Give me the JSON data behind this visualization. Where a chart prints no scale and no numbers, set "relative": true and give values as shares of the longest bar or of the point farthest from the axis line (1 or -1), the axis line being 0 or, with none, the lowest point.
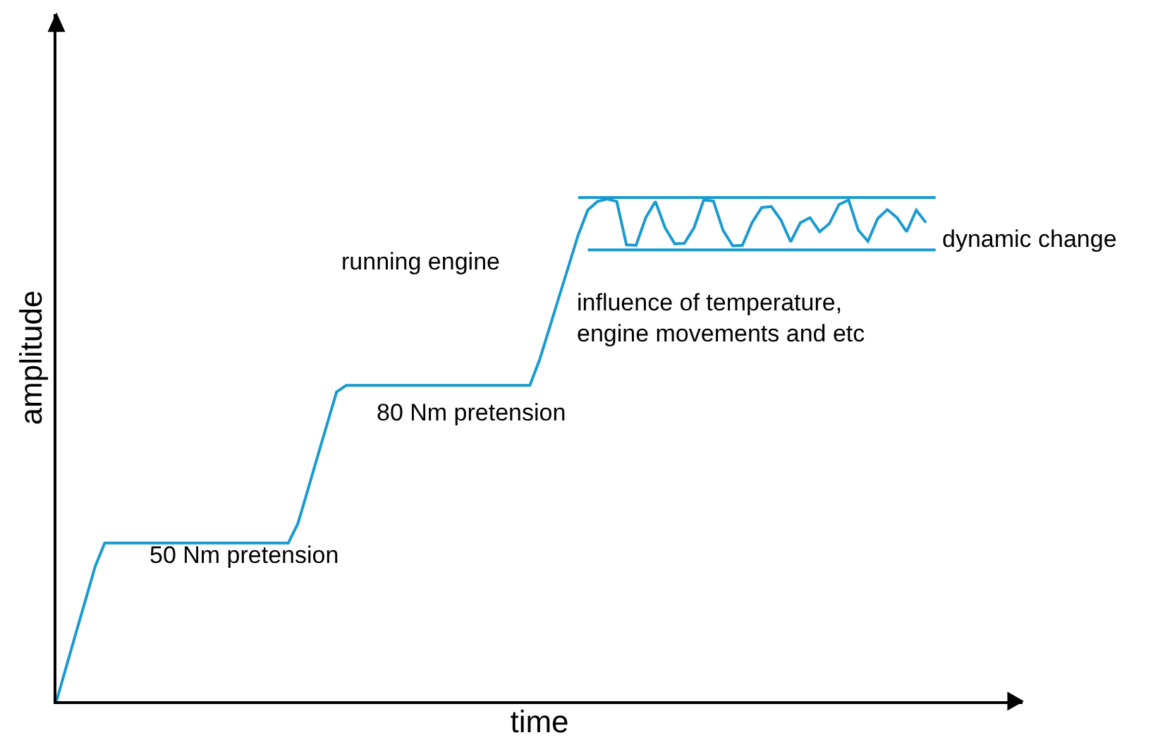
{
  "chart_data": {
    "type": "line",
    "relative": true,
    "xlabel": "time",
    "ylabel": "amplitude",
    "marker": "none",
    "line_style": "solid",
    "categories": [
      null,
      null,
      null,
      null,
      null,
      null,
      null,
      null,
      null,
      null,
      null,
      null,
      null,
      null,
      null,
      null,
      null,
      null,
      null,
      null,
      null,
      null,
      null,
      null,
      null,
      null,
      null,
      null,
      null,
      null,
      null,
      null,
      null,
      null,
      null,
      null,
      null,
      null,
      null,
      null,
      null,
      null,
      null,
      null,
      null,
      null,
      null,
      null,
      null,
      null,
      null,
      null,
      null,
      null,
      null,
      null,
      null,
      null,
      null,
      null,
      null,
      null,
      null,
      null,
      null,
      null,
      null,
      null,
      null,
      null,
      null,
      null,
      null,
      null,
      null,
      null,
      null,
      null,
      null,
      null,
      null,
      null,
      null,
      null,
      null,
      null,
      null,
      null,
      null,
      null,
      null,
      null,
      null,
      null,
      null,
      null,
      null,
      null,
      null,
      null,
      null
    ],
    "series": [
      {
        "color": "#1a9bd0",
        "values": [
          0,
          0.067,
          0.134,
          0.2,
          0.267,
          0.314,
          0.314,
          0.314,
          0.314,
          0.314,
          0.314,
          0.314,
          0.314,
          0.314,
          0.314,
          0.314,
          0.314,
          0.314,
          0.314,
          0.314,
          0.314,
          0.314,
          0.314,
          0.314,
          0.314,
          0.353,
          0.418,
          0.484,
          0.549,
          0.614,
          0.627,
          0.627,
          0.627,
          0.627,
          0.627,
          0.627,
          0.627,
          0.627,
          0.627,
          0.627,
          0.627,
          0.627,
          0.627,
          0.627,
          0.627,
          0.627,
          0.627,
          0.627,
          0.627,
          0.627,
          0.677,
          0.739,
          0.801,
          0.863,
          0.925,
          0.975,
          0.992,
          0.997,
          0.992,
          0.906,
          0.905,
          0.96,
          0.992,
          0.94,
          0.908,
          0.909,
          0.94,
          0.995,
          0.993,
          0.935,
          0.904,
          0.905,
          0.95,
          0.98,
          0.982,
          0.955,
          0.912,
          0.95,
          0.96,
          0.932,
          0.948,
          0.986,
          0.995,
          0.935,
          0.913,
          0.958,
          0.976,
          0.96,
          0.932,
          0.975,
          0.95,
          null,
          null,
          null,
          null,
          null,
          null,
          null,
          null,
          null,
          null
        ]
      },
      {
        "color": "#1a9bd0",
        "values": [
          null,
          null,
          null,
          null,
          null,
          null,
          null,
          null,
          null,
          null,
          null,
          null,
          null,
          null,
          null,
          null,
          null,
          null,
          null,
          null,
          null,
          null,
          null,
          null,
          null,
          null,
          null,
          null,
          null,
          null,
          null,
          null,
          null,
          null,
          null,
          null,
          null,
          null,
          null,
          null,
          null,
          null,
          null,
          null,
          null,
          null,
          null,
          null,
          null,
          null,
          null,
          null,
          null,
          null,
          1.0,
          1.0,
          1.0,
          1.0,
          1.0,
          1.0,
          1.0,
          1.0,
          1.0,
          1.0,
          1.0,
          1.0,
          1.0,
          1.0,
          1.0,
          1.0,
          1.0,
          1.0,
          1.0,
          1.0,
          1.0,
          1.0,
          1.0,
          1.0,
          1.0,
          1.0,
          1.0,
          1.0,
          1.0,
          1.0,
          1.0,
          1.0,
          1.0,
          1.0,
          1.0,
          1.0,
          1.0,
          1.0,
          null,
          null,
          null,
          null,
          null,
          null,
          null,
          null,
          null
        ]
      },
      {
        "color": "#1a9bd0",
        "values": [
          null,
          null,
          null,
          null,
          null,
          null,
          null,
          null,
          null,
          null,
          null,
          null,
          null,
          null,
          null,
          null,
          null,
          null,
          null,
          null,
          null,
          null,
          null,
          null,
          null,
          null,
          null,
          null,
          null,
          null,
          null,
          null,
          null,
          null,
          null,
          null,
          null,
          null,
          null,
          null,
          null,
          null,
          null,
          null,
          null,
          null,
          null,
          null,
          null,
          null,
          null,
          null,
          null,
          null,
          null,
          0.896,
          0.896,
          0.896,
          0.896,
          0.896,
          0.896,
          0.896,
          0.896,
          0.896,
          0.896,
          0.896,
          0.896,
          0.896,
          0.896,
          0.896,
          0.896,
          0.896,
          0.896,
          0.896,
          0.896,
          0.896,
          0.896,
          0.896,
          0.896,
          0.896,
          0.896,
          0.896,
          0.896,
          0.896,
          0.896,
          0.896,
          0.896,
          0.896,
          0.896,
          0.896,
          0.896,
          0.896,
          null,
          null,
          null,
          null,
          null,
          null,
          null,
          null,
          null
        ]
      }
    ],
    "annotations": [
      "50 Nm pretension",
      "80 Nm pretension",
      "running engine",
      "influence of temperature,\nengine movements and etc",
      "dynamic change"
    ]
  }
}
